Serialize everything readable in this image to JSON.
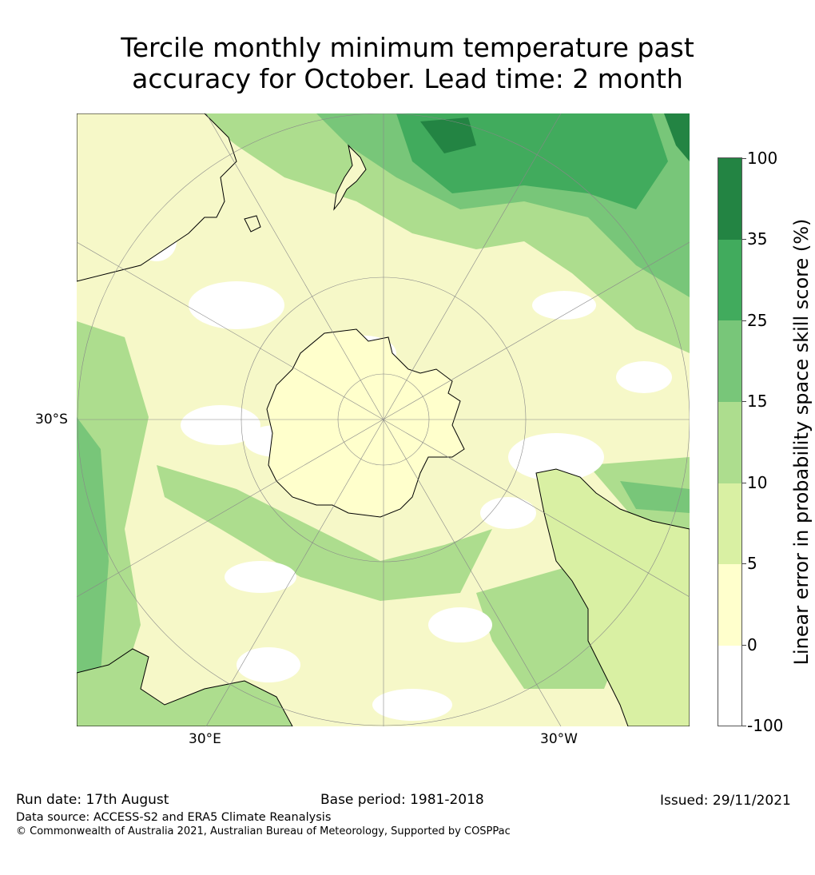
{
  "title": {
    "line1": "Tercile monthly minimum temperature past",
    "line2": "accuracy for October. Lead time: 2 month"
  },
  "map": {
    "projection": "south-polar-stereographic",
    "axis_labels": {
      "lat_left": "30°S",
      "lon_bottom_left": "30°E",
      "lon_bottom_right": "30°W"
    },
    "colors": {
      "c_neg": "#ffffff",
      "c0_5": "#ffffcc",
      "c5_10": "#d9f0a3",
      "c10_15": "#addd8e",
      "c15_25": "#78c679",
      "c25_35": "#41ab5d",
      "c35_100": "#238443",
      "coast": "#000000",
      "grid": "#888888"
    }
  },
  "colorbar": {
    "label": "Linear error in probability space skill score (%)",
    "ticks": [
      "100",
      "35",
      "25",
      "15",
      "10",
      "5",
      "0",
      "-100"
    ],
    "bins": [
      {
        "from": "35",
        "to": "100",
        "color": "#238443"
      },
      {
        "from": "25",
        "to": "35",
        "color": "#41ab5d"
      },
      {
        "from": "15",
        "to": "25",
        "color": "#78c679"
      },
      {
        "from": "10",
        "to": "15",
        "color": "#addd8e"
      },
      {
        "from": "5",
        "to": "10",
        "color": "#d9f0a3"
      },
      {
        "from": "0",
        "to": "5",
        "color": "#ffffcc"
      },
      {
        "from": "-100",
        "to": "0",
        "color": "#ffffff"
      }
    ]
  },
  "footer": {
    "run_date": "Run date: 17th August",
    "base_period": "Base period: 1981-2018",
    "issued": "Issued: 29/11/2021",
    "data_source": "Data source: ACCESS-S2 and ERA5 Climate Reanalysis",
    "copyright": "© Commonwealth of Australia 2021, Australian Bureau of Meteorology, Supported by COSPPac"
  }
}
